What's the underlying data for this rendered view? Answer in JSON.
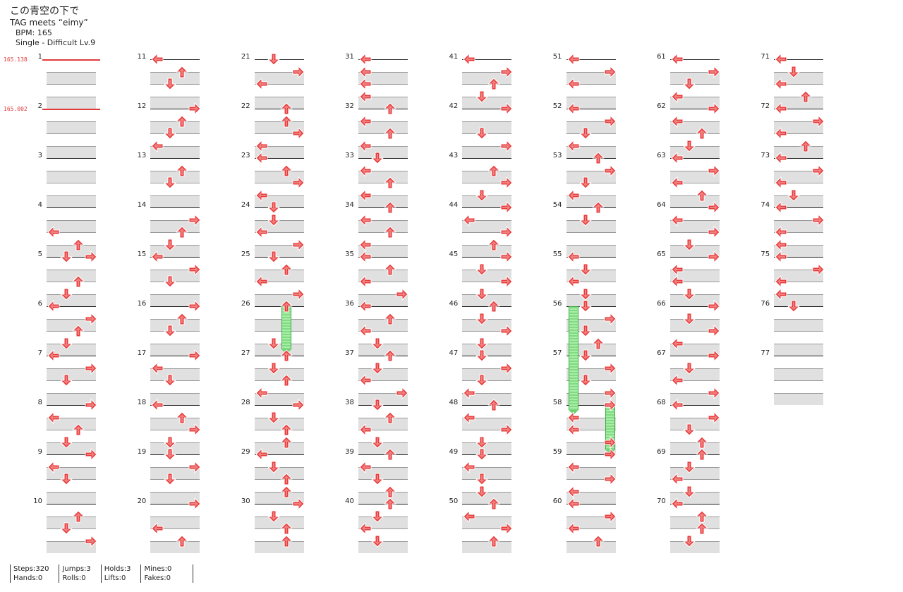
{
  "song": {
    "title": "この青空の下で",
    "artist": "TAG meets “eimy”",
    "bpm_text": "BPM: 165",
    "chart_text": "Single - Difficult Lv.9"
  },
  "bpm_changes": [
    {
      "measure": 1,
      "label": "165.138"
    },
    {
      "measure": 2,
      "label": "165.002"
    }
  ],
  "measure_count": 77,
  "colors": {
    "quarter": "#e83c3c",
    "eighth": "#3b5bdb",
    "hold": "#7fdc7f",
    "shade": "#e0e0e0"
  },
  "notes": {
    "4": [
      [
        2,
        0
      ],
      [
        3,
        2
      ],
      [
        4,
        1
      ]
    ],
    "5": [
      [
        0,
        3
      ],
      [
        2,
        2
      ],
      [
        3,
        1
      ]
    ],
    "6": [
      [
        0,
        0
      ],
      [
        1,
        3
      ],
      [
        2,
        2
      ],
      [
        3,
        1
      ]
    ],
    "7": [
      [
        0,
        0
      ],
      [
        1,
        3
      ],
      [
        2,
        1
      ]
    ],
    "8": [
      [
        0,
        3
      ],
      [
        1,
        0
      ],
      [
        2,
        2
      ],
      [
        3,
        1
      ]
    ],
    "9": [
      [
        0,
        3
      ],
      [
        1,
        0
      ],
      [
        2,
        1
      ]
    ],
    "10": [
      [
        1,
        2
      ],
      [
        2,
        1
      ],
      [
        3,
        3
      ]
    ],
    "11": [
      [
        0,
        0
      ],
      [
        1,
        2
      ],
      [
        2,
        1
      ]
    ],
    "12": [
      [
        0,
        3
      ],
      [
        1,
        2
      ],
      [
        2,
        1
      ],
      [
        3,
        0
      ]
    ],
    "13": [
      [
        1,
        2
      ],
      [
        2,
        1
      ]
    ],
    "14": [
      [
        1,
        3
      ],
      [
        2,
        2
      ],
      [
        3,
        1
      ]
    ],
    "15": [
      [
        0,
        0
      ],
      [
        1,
        3
      ],
      [
        2,
        1
      ]
    ],
    "16": [
      [
        0,
        3
      ],
      [
        1,
        2
      ],
      [
        2,
        1
      ]
    ],
    "17": [
      [
        0,
        3
      ],
      [
        1,
        0
      ],
      [
        2,
        1
      ]
    ],
    "18": [
      [
        0,
        0
      ],
      [
        1,
        2
      ],
      [
        2,
        3
      ],
      [
        3,
        1
      ]
    ],
    "19": [
      [
        0,
        1
      ],
      [
        1,
        3
      ],
      [
        2,
        1
      ]
    ],
    "20": [
      [
        0,
        3
      ],
      [
        2,
        0
      ],
      [
        3,
        2
      ]
    ],
    "21": [
      [
        0,
        1
      ],
      [
        1,
        3
      ],
      [
        2,
        0
      ]
    ],
    "22": [
      [
        0,
        2
      ],
      [
        1,
        2
      ],
      [
        2,
        3
      ],
      [
        3,
        0
      ]
    ],
    "23": [
      [
        0,
        0
      ],
      [
        1,
        2
      ],
      [
        2,
        3
      ],
      [
        3,
        0
      ]
    ],
    "24": [
      [
        0,
        1
      ],
      [
        1,
        1
      ],
      [
        2,
        0
      ],
      [
        3,
        3
      ]
    ],
    "25": [
      [
        0,
        1
      ],
      [
        1,
        2
      ],
      [
        2,
        0
      ],
      [
        3,
        3
      ]
    ],
    "26": [
      [
        0,
        2
      ],
      [
        3,
        1
      ]
    ],
    "27": [
      [
        0,
        2
      ],
      [
        1,
        1
      ],
      [
        2,
        2
      ],
      [
        3,
        0
      ]
    ],
    "28": [
      [
        0,
        3
      ],
      [
        1,
        1
      ],
      [
        2,
        2
      ],
      [
        3,
        2
      ]
    ],
    "29": [
      [
        0,
        0
      ],
      [
        1,
        1
      ],
      [
        2,
        2
      ],
      [
        3,
        2
      ]
    ],
    "30": [
      [
        0,
        3
      ],
      [
        1,
        1
      ],
      [
        2,
        2
      ],
      [
        3,
        2
      ]
    ],
    "31": [
      [
        0,
        0
      ],
      [
        1,
        0
      ],
      [
        2,
        0
      ],
      [
        3,
        0
      ]
    ],
    "32": [
      [
        0,
        2
      ],
      [
        1,
        0
      ],
      [
        2,
        2
      ],
      [
        3,
        0
      ]
    ],
    "33": [
      [
        0,
        1
      ],
      [
        1,
        0
      ],
      [
        2,
        2
      ],
      [
        3,
        0
      ]
    ],
    "34": [
      [
        0,
        2
      ],
      [
        1,
        0
      ],
      [
        2,
        2
      ],
      [
        3,
        0
      ]
    ],
    "35": [
      [
        0,
        0
      ],
      [
        1,
        2
      ],
      [
        2,
        0
      ],
      [
        3,
        3
      ]
    ],
    "36": [
      [
        0,
        0
      ],
      [
        1,
        2
      ],
      [
        2,
        0
      ],
      [
        3,
        1
      ]
    ],
    "37": [
      [
        0,
        2
      ],
      [
        1,
        1
      ],
      [
        2,
        0
      ],
      [
        3,
        3
      ]
    ],
    "38": [
      [
        0,
        1
      ],
      [
        1,
        2
      ],
      [
        2,
        0
      ],
      [
        3,
        1
      ]
    ],
    "39": [
      [
        0,
        2
      ],
      [
        1,
        0
      ],
      [
        2,
        1
      ],
      [
        3,
        2
      ]
    ],
    "40": [
      [
        0,
        2
      ],
      [
        1,
        1
      ],
      [
        2,
        0
      ],
      [
        3,
        1
      ]
    ],
    "41": [
      [
        0,
        0
      ],
      [
        1,
        3
      ],
      [
        2,
        2
      ],
      [
        3,
        1
      ]
    ],
    "42": [
      [
        0,
        3
      ],
      [
        2,
        1
      ],
      [
        3,
        3
      ]
    ],
    "43": [
      [
        1,
        2
      ],
      [
        2,
        3
      ],
      [
        3,
        1
      ]
    ],
    "44": [
      [
        0,
        3
      ],
      [
        1,
        0
      ],
      [
        2,
        3
      ],
      [
        3,
        2
      ]
    ],
    "45": [
      [
        0,
        3
      ],
      [
        1,
        1
      ],
      [
        2,
        3
      ],
      [
        3,
        1
      ]
    ],
    "46": [
      [
        0,
        2
      ],
      [
        1,
        1
      ],
      [
        2,
        3
      ],
      [
        3,
        1
      ]
    ],
    "47": [
      [
        0,
        1
      ],
      [
        1,
        3
      ],
      [
        2,
        1
      ],
      [
        3,
        0
      ]
    ],
    "48": [
      [
        0,
        2
      ],
      [
        1,
        0
      ],
      [
        2,
        3
      ],
      [
        3,
        1
      ]
    ],
    "49": [
      [
        0,
        1
      ],
      [
        1,
        0
      ],
      [
        2,
        1
      ],
      [
        3,
        1
      ]
    ],
    "50": [
      [
        0,
        2
      ],
      [
        1,
        0
      ],
      [
        2,
        3
      ],
      [
        3,
        2
      ]
    ],
    "51": [
      [
        0,
        0
      ],
      [
        1,
        3
      ],
      [
        2,
        0
      ]
    ],
    "52": [
      [
        0,
        0
      ],
      [
        1,
        3
      ],
      [
        2,
        1
      ],
      [
        3,
        0
      ]
    ],
    "53": [
      [
        0,
        2
      ],
      [
        1,
        3
      ],
      [
        2,
        1
      ],
      [
        3,
        0
      ]
    ],
    "54": [
      [
        0,
        2
      ],
      [
        1,
        1
      ]
    ],
    "55": [
      [
        0,
        0
      ],
      [
        1,
        1
      ],
      [
        2,
        0
      ],
      [
        3,
        1
      ]
    ],
    "56": [
      [
        0,
        1
      ],
      [
        1,
        3
      ],
      [
        2,
        1
      ],
      [
        3,
        2
      ]
    ],
    "57": [
      [
        0,
        1
      ],
      [
        1,
        3
      ],
      [
        2,
        1
      ],
      [
        3,
        3
      ]
    ],
    "58": [
      [
        0,
        3
      ],
      [
        1,
        0
      ],
      [
        2,
        0
      ],
      [
        3,
        3
      ]
    ],
    "59": [
      [
        0,
        3
      ],
      [
        1,
        0
      ],
      [
        2,
        3
      ],
      [
        3,
        0
      ]
    ],
    "60": [
      [
        0,
        0
      ],
      [
        1,
        3
      ],
      [
        2,
        0
      ],
      [
        3,
        2
      ]
    ],
    "61": [
      [
        0,
        0
      ],
      [
        1,
        3
      ],
      [
        2,
        1
      ],
      [
        3,
        0
      ]
    ],
    "62": [
      [
        0,
        3
      ],
      [
        1,
        0
      ],
      [
        2,
        2
      ],
      [
        3,
        1
      ]
    ],
    "63": [
      [
        0,
        0
      ],
      [
        1,
        3
      ],
      [
        2,
        0
      ],
      [
        3,
        2
      ]
    ],
    "64": [
      [
        0,
        3
      ],
      [
        1,
        0
      ],
      [
        2,
        3
      ],
      [
        3,
        1
      ]
    ],
    "65": [
      [
        0,
        3
      ],
      [
        1,
        0
      ],
      [
        2,
        0
      ],
      [
        3,
        1
      ]
    ],
    "66": [
      [
        0,
        3
      ],
      [
        1,
        1
      ],
      [
        2,
        3
      ],
      [
        3,
        0
      ]
    ],
    "67": [
      [
        0,
        3
      ],
      [
        1,
        1
      ],
      [
        2,
        0
      ],
      [
        3,
        3
      ]
    ],
    "68": [
      [
        0,
        0
      ],
      [
        1,
        3
      ],
      [
        2,
        1
      ],
      [
        3,
        2
      ]
    ],
    "69": [
      [
        0,
        2
      ],
      [
        1,
        1
      ],
      [
        2,
        0
      ],
      [
        3,
        1
      ]
    ],
    "70": [
      [
        0,
        0
      ],
      [
        1,
        2
      ],
      [
        2,
        2
      ],
      [
        3,
        1
      ]
    ],
    "71": [
      [
        0,
        0
      ],
      [
        1,
        1
      ],
      [
        2,
        0
      ],
      [
        3,
        2
      ]
    ],
    "72": [
      [
        0,
        0
      ],
      [
        1,
        3
      ],
      [
        2,
        0
      ],
      [
        3,
        2
      ]
    ],
    "73": [
      [
        0,
        0
      ],
      [
        1,
        3
      ],
      [
        2,
        0
      ],
      [
        3,
        1
      ]
    ],
    "74": [
      [
        0,
        0
      ],
      [
        1,
        3
      ],
      [
        2,
        0
      ],
      [
        3,
        0
      ]
    ],
    "75": [
      [
        0,
        0
      ],
      [
        1,
        3
      ],
      [
        2,
        0
      ],
      [
        3,
        0
      ]
    ],
    "76": [
      [
        0,
        1
      ]
    ]
  },
  "holds": [
    {
      "measure": 26,
      "lane": 2,
      "start_beat": 0,
      "end_beat": 3.5
    },
    {
      "measure": 56,
      "lane": 0,
      "start_beat": 0,
      "end_beat": 8.4
    },
    {
      "measure": 58,
      "lane": 3,
      "start_beat": 0,
      "end_beat": 3.6
    }
  ],
  "stats": {
    "steps": "Steps:320",
    "hands": "Hands:0",
    "jumps": "Jumps:3",
    "rolls": "Rolls:0",
    "holds": "Holds:3",
    "lifts": "Lifts:0",
    "mines": "Mines:0",
    "fakes": "Fakes:0"
  }
}
